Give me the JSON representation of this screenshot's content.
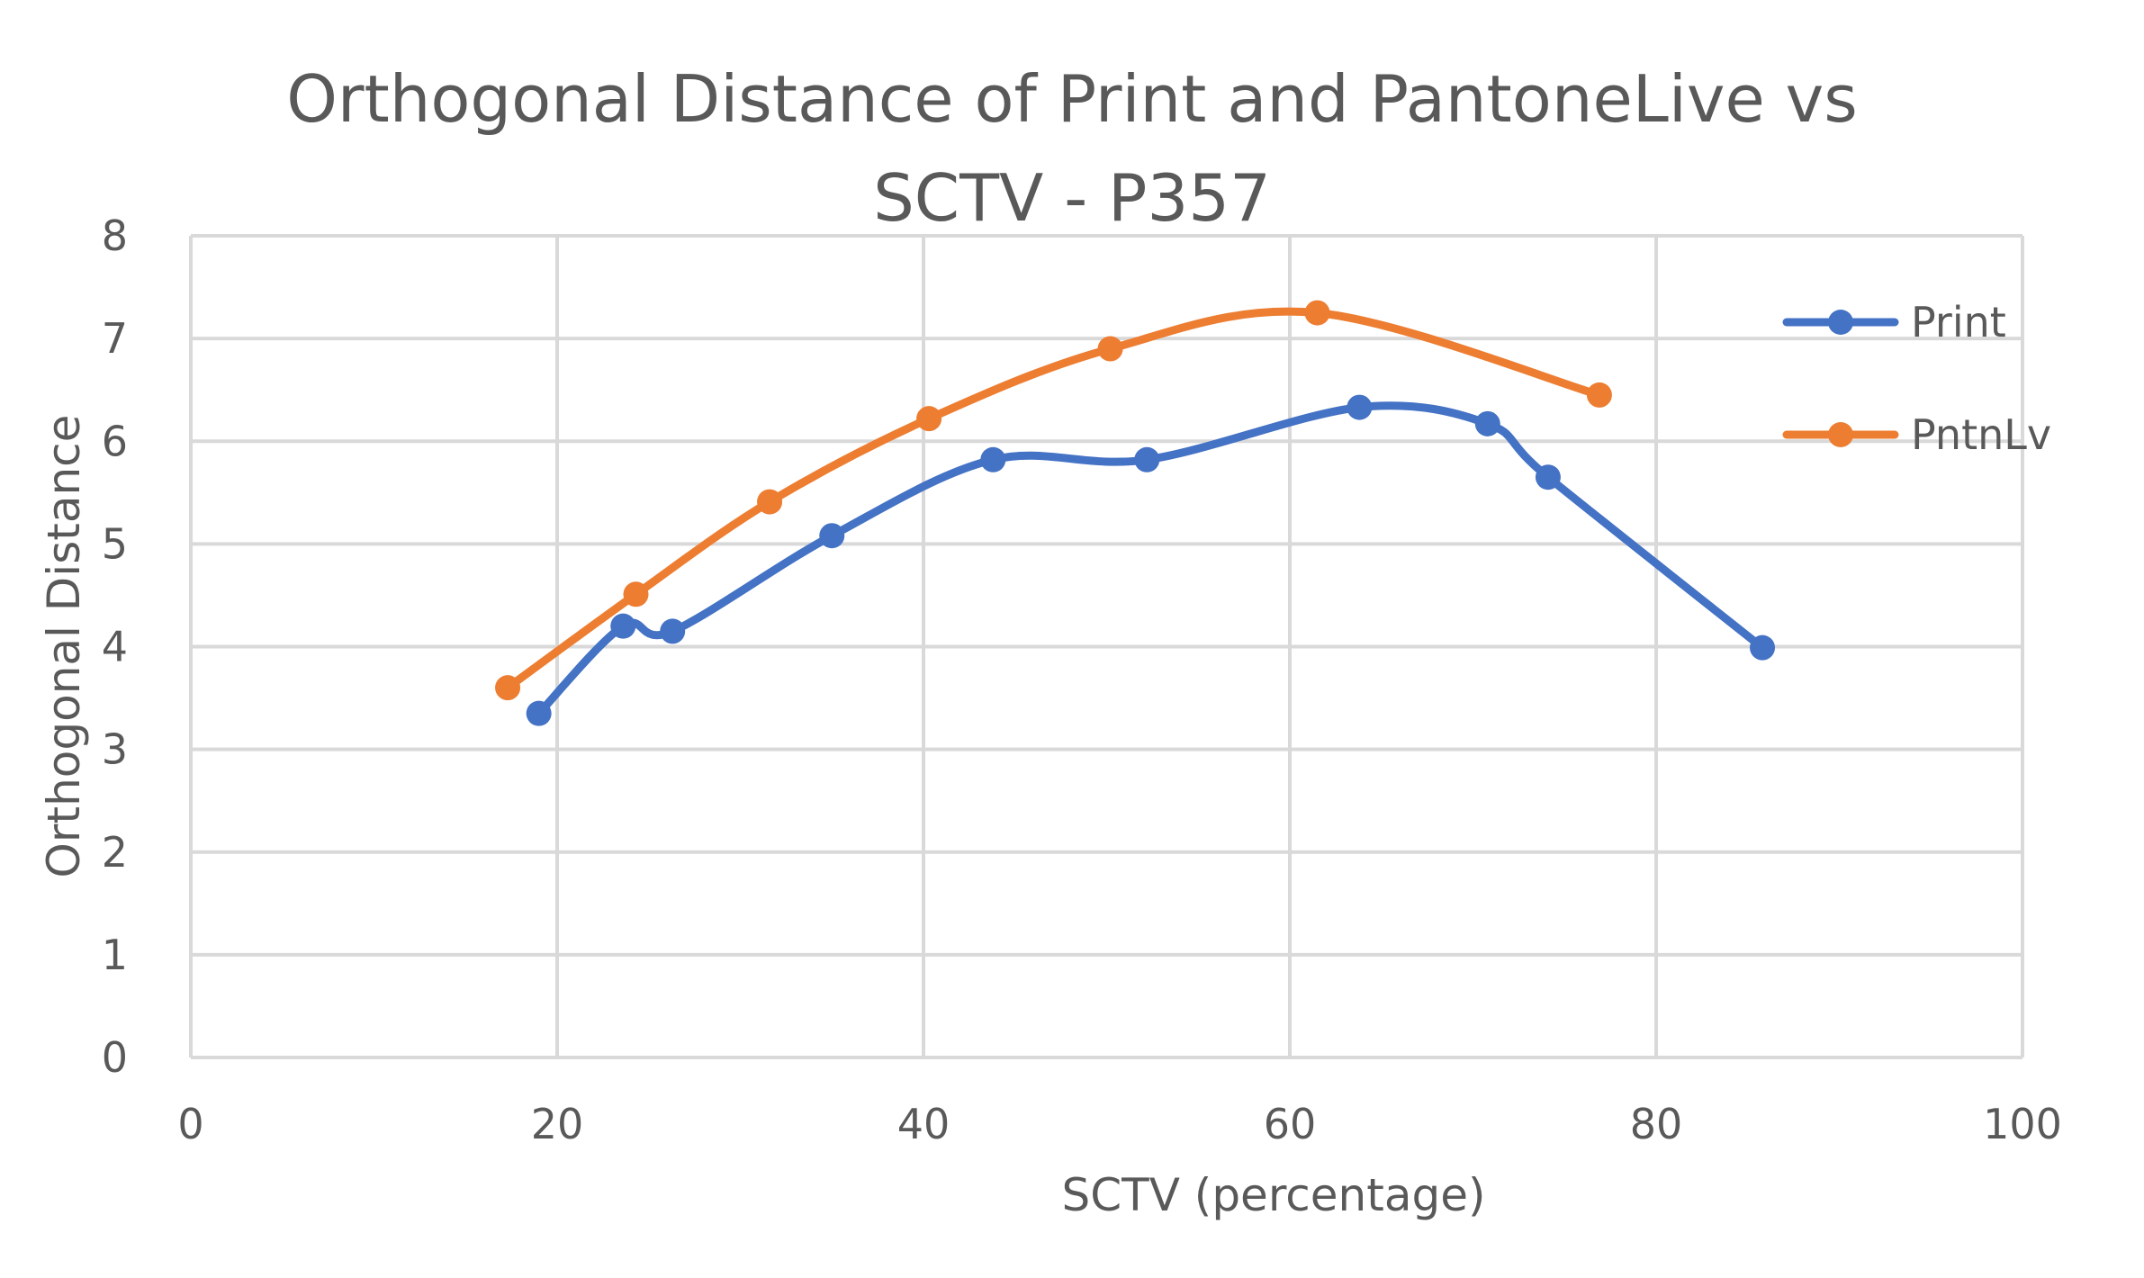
{
  "chart_data": {
    "type": "scatter",
    "title_lines": [
      "Orthogonal Distance of Print and PantoneLive vs",
      "SCTV - P357"
    ],
    "xlabel": "SCTV (percentage)",
    "ylabel": "Orthogonal Distance",
    "xlim": [
      0,
      100
    ],
    "ylim": [
      0,
      8
    ],
    "x_ticks": [
      0,
      20,
      40,
      60,
      80,
      100
    ],
    "y_ticks": [
      0,
      1,
      2,
      3,
      4,
      5,
      6,
      7,
      8
    ],
    "grid": true,
    "smooth_lines": true,
    "legend_position": "right",
    "series": [
      {
        "name": "Print",
        "color": "#4472C4",
        "points": [
          {
            "x": 19.0,
            "y": 3.35
          },
          {
            "x": 23.6,
            "y": 4.2
          },
          {
            "x": 26.3,
            "y": 4.15
          },
          {
            "x": 35.0,
            "y": 5.08
          },
          {
            "x": 43.8,
            "y": 5.82
          },
          {
            "x": 52.2,
            "y": 5.82
          },
          {
            "x": 63.8,
            "y": 6.33
          },
          {
            "x": 70.8,
            "y": 6.17
          },
          {
            "x": 74.1,
            "y": 5.65
          },
          {
            "x": 85.8,
            "y": 3.99
          }
        ]
      },
      {
        "name": "PntnLv",
        "color": "#ED7D31",
        "points": [
          {
            "x": 17.3,
            "y": 3.6
          },
          {
            "x": 24.3,
            "y": 4.51
          },
          {
            "x": 31.6,
            "y": 5.41
          },
          {
            "x": 40.3,
            "y": 6.22
          },
          {
            "x": 50.2,
            "y": 6.9
          },
          {
            "x": 61.5,
            "y": 7.25
          },
          {
            "x": 76.9,
            "y": 6.45
          }
        ]
      }
    ]
  }
}
